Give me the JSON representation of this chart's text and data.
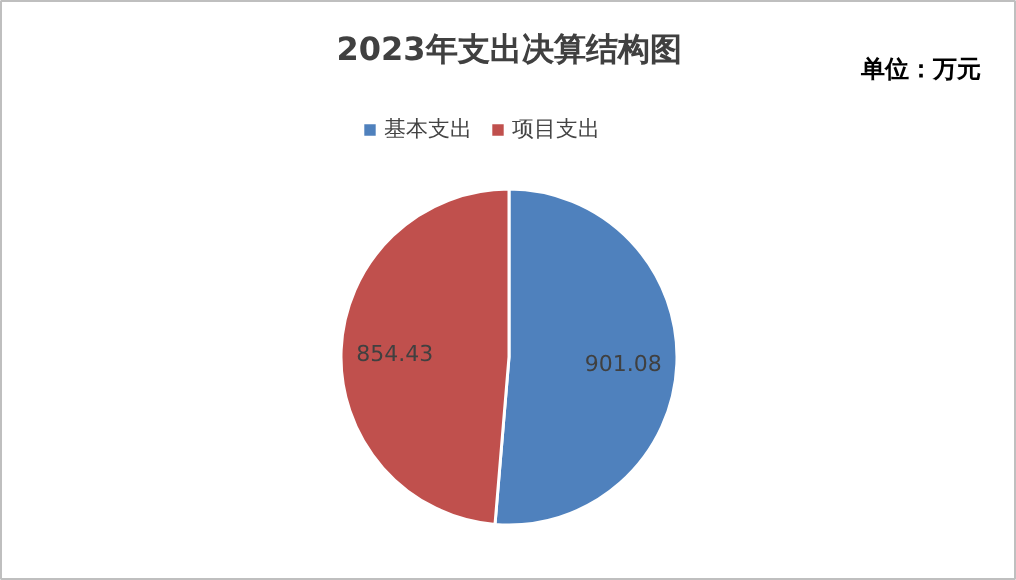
{
  "chart_data": {
    "type": "pie",
    "title": "2023年支出决算结构图",
    "annotations": [
      "单位：万元"
    ],
    "categories": [
      "基本支出",
      "项目支出"
    ],
    "values": [
      901.08,
      854.43
    ],
    "colors": [
      "#4f81bd",
      "#c0504d"
    ],
    "data_labels": true,
    "legend": "top"
  }
}
